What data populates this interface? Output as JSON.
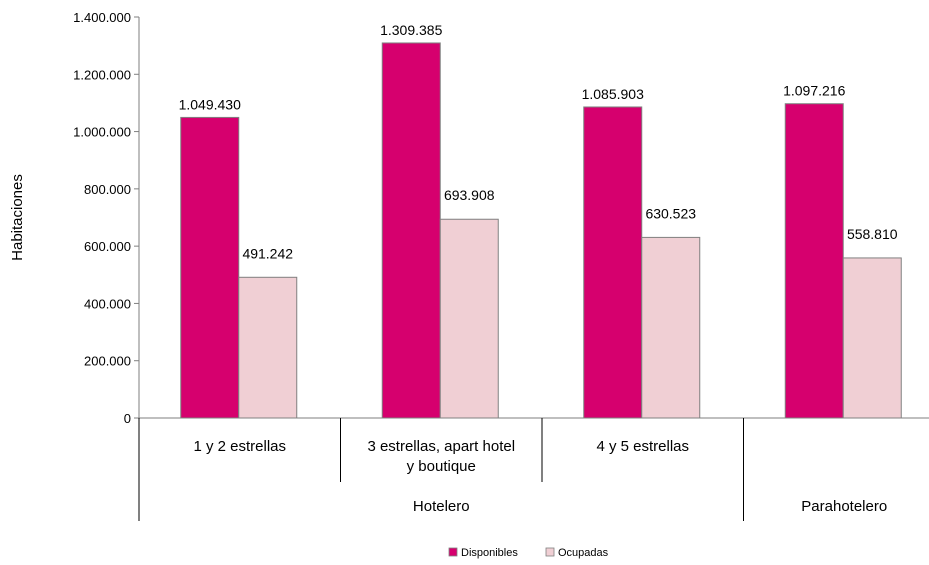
{
  "chart_data": {
    "type": "bar",
    "title": "",
    "ylabel": "Habitaciones",
    "xlabel": "",
    "ylim": [
      0,
      1400000
    ],
    "yticks": [
      0,
      200000,
      400000,
      600000,
      800000,
      1000000,
      1200000,
      1400000
    ],
    "ytick_labels": [
      "0",
      "200.000",
      "400.000",
      "600.000",
      "800.000",
      "1.000.000",
      "1.200.000",
      "1.400.000"
    ],
    "categories": [
      {
        "lines": [
          "1 y 2 estrellas"
        ]
      },
      {
        "lines": [
          "3 estrellas, apart hotel",
          "y boutique"
        ]
      },
      {
        "lines": [
          "4 y 5 estrellas"
        ]
      },
      {
        "lines": [
          ""
        ]
      }
    ],
    "groups": [
      {
        "label": "Hotelero",
        "span": [
          0,
          2
        ]
      },
      {
        "label": "Parahotelero",
        "span": [
          3,
          3
        ]
      }
    ],
    "series": [
      {
        "name": "Disponibles",
        "color": "#d6006e",
        "values": [
          1049430,
          1309385,
          1085903,
          1097216
        ],
        "labels": [
          "1.049.430",
          "1.309.385",
          "1.085.903",
          "1.097.216"
        ]
      },
      {
        "name": "Ocupadas",
        "color": "#f0cfd4",
        "values": [
          491242,
          693908,
          630523,
          558810
        ],
        "labels": [
          "491.242",
          "693.908",
          "630.523",
          "558.810"
        ]
      }
    ],
    "grid": false,
    "legend_position": "bottom"
  }
}
